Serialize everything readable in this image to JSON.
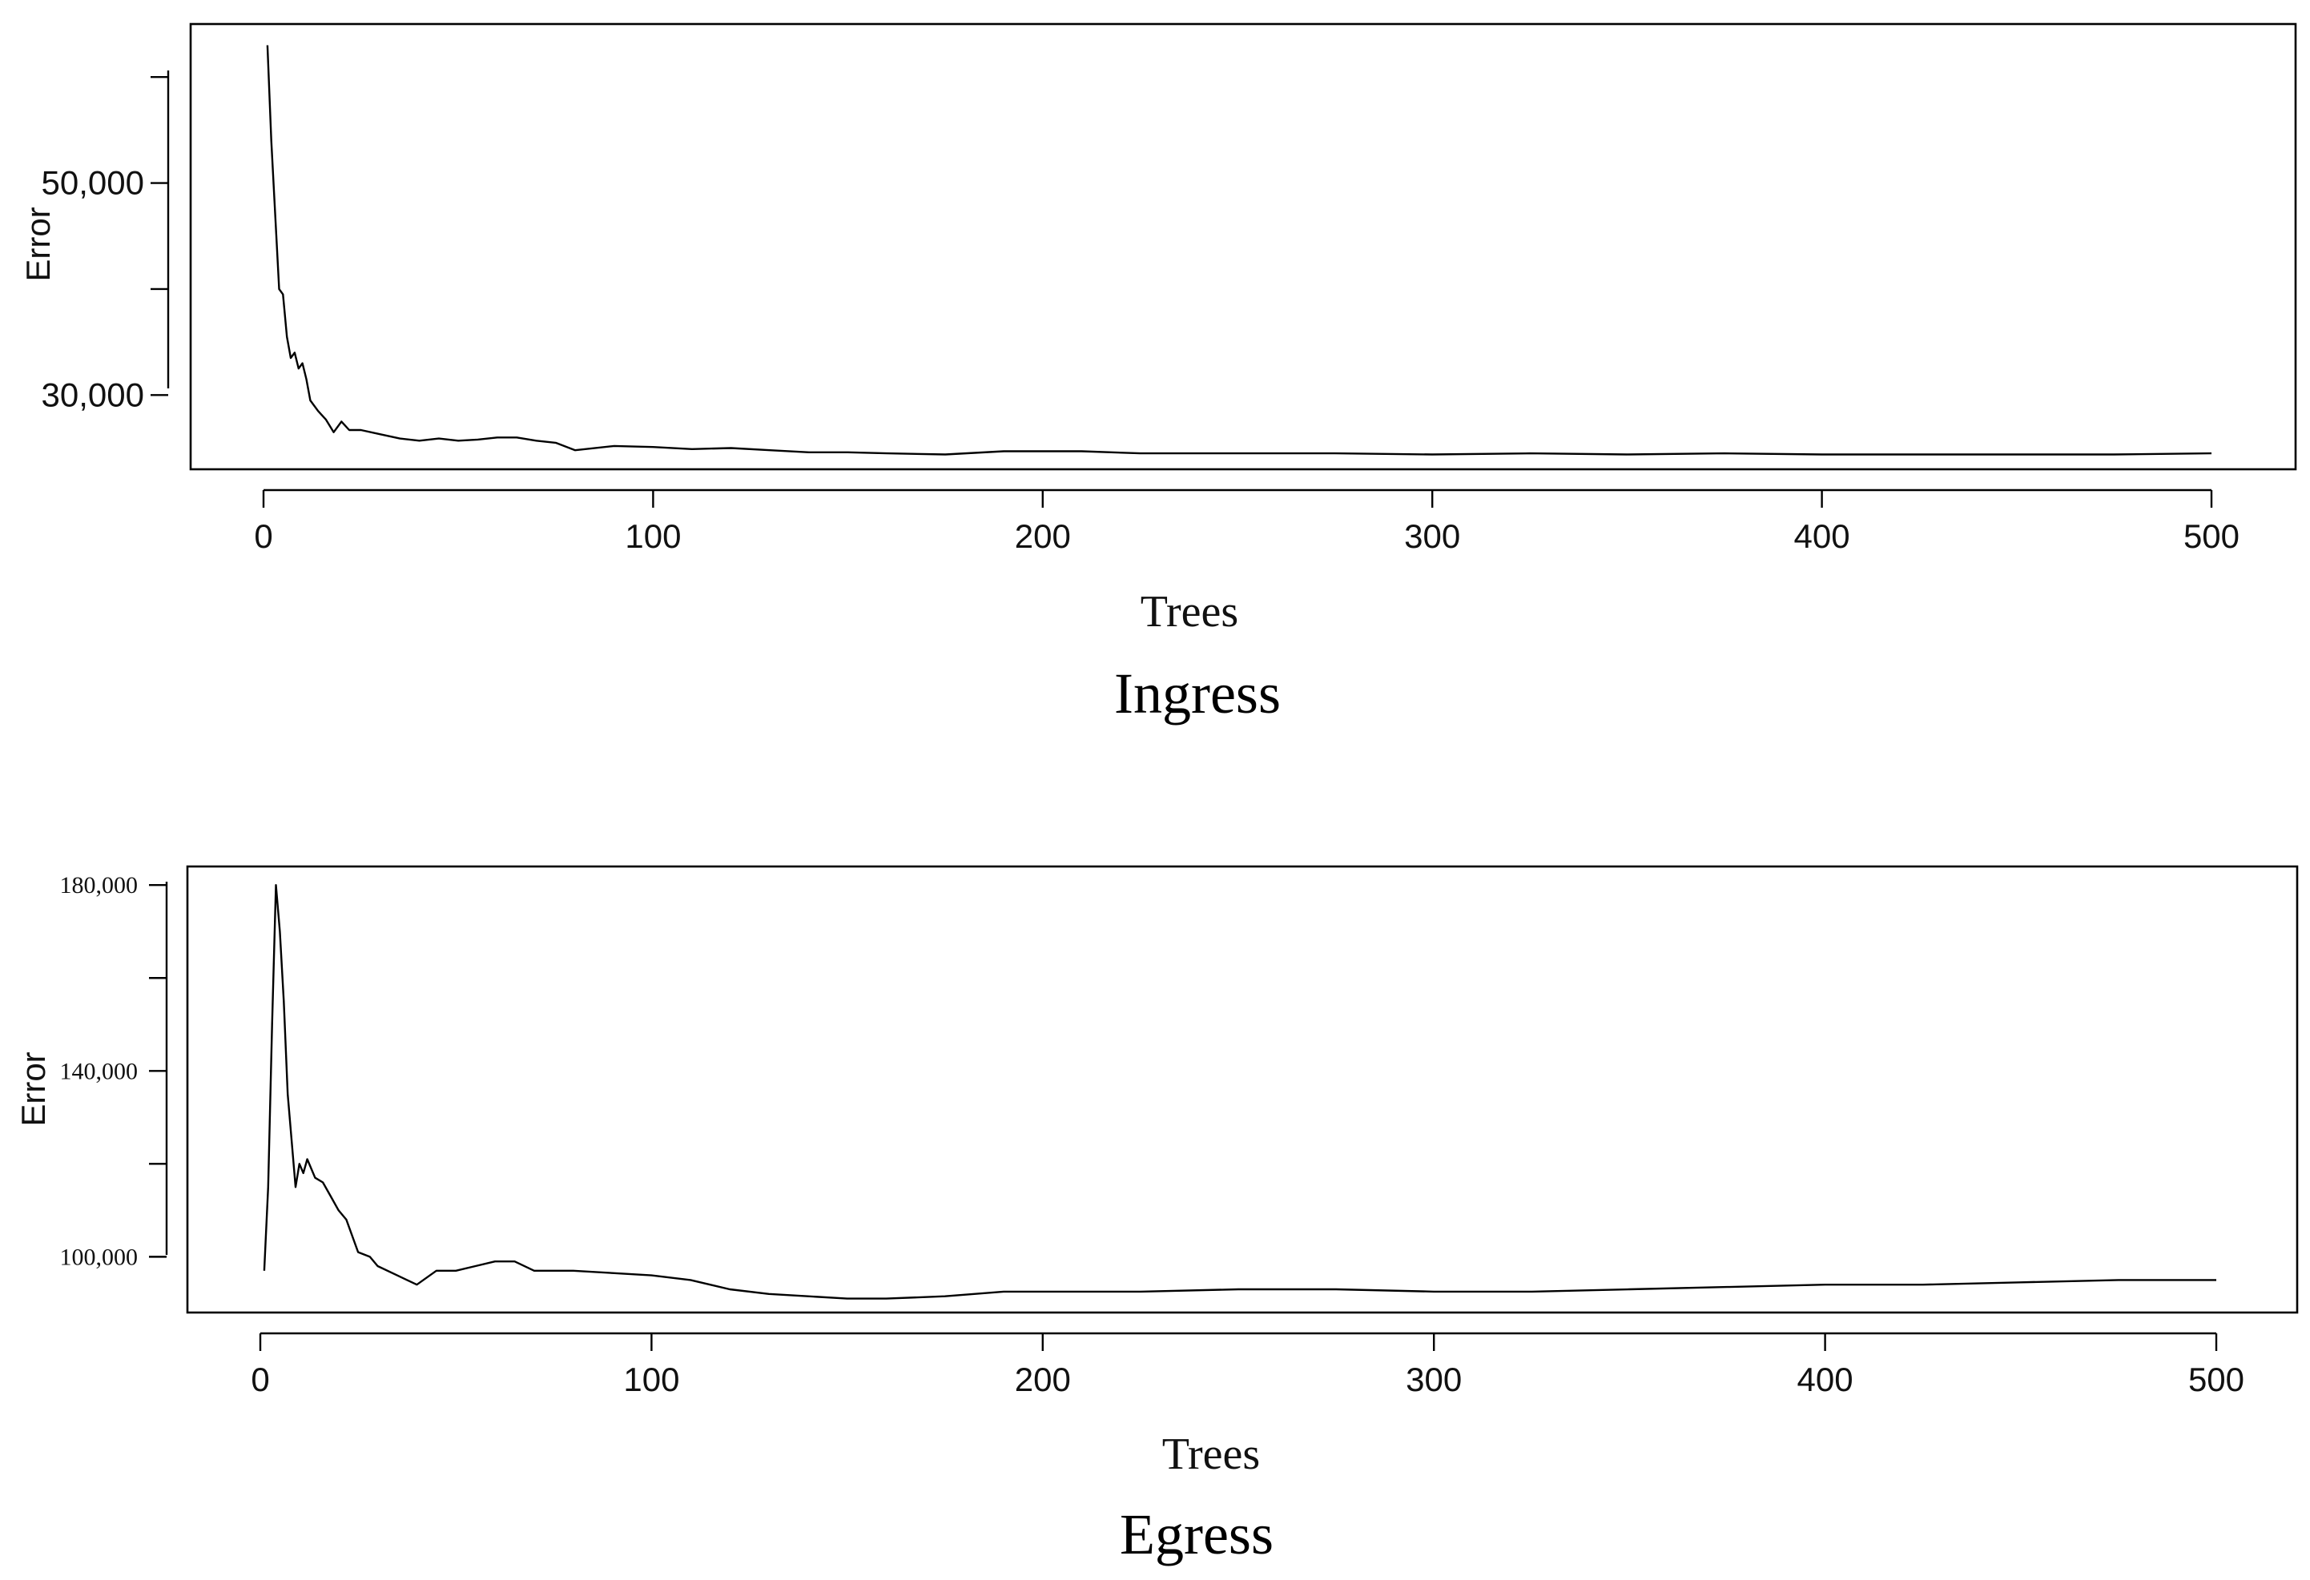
{
  "chart_data": [
    {
      "type": "line",
      "caption": "Ingress",
      "xlabel": "Trees",
      "ylabel": "Error",
      "xlim": [
        0,
        500
      ],
      "ylim": [
        23000,
        65000
      ],
      "x_ticks": [
        0,
        100,
        200,
        300,
        400,
        500
      ],
      "x_tick_labels": [
        "0",
        "100",
        "200",
        "300",
        "400",
        "500"
      ],
      "y_ticks": [
        30000,
        40000,
        50000,
        60000
      ],
      "y_tick_labels": [
        "30,000",
        "",
        "50,000",
        ""
      ],
      "grid": false,
      "series": [
        {
          "x": [
            1,
            2,
            3,
            4,
            5,
            6,
            7,
            8,
            9,
            10,
            11,
            12,
            14,
            16,
            18,
            20,
            22,
            25,
            30,
            35,
            40,
            45,
            50,
            55,
            60,
            65,
            70,
            75,
            80,
            90,
            100,
            110,
            120,
            130,
            140,
            150,
            160,
            175,
            190,
            200,
            210,
            225,
            250,
            275,
            300,
            325,
            350,
            375,
            400,
            425,
            450,
            475,
            500
          ],
          "y": [
            63000,
            54000,
            47000,
            40000,
            39500,
            35500,
            33500,
            34000,
            32500,
            33000,
            31500,
            29500,
            28500,
            27700,
            26500,
            27500,
            26700,
            26700,
            26300,
            25900,
            25700,
            25900,
            25700,
            25800,
            26000,
            26000,
            25700,
            25500,
            24800,
            25200,
            25100,
            24900,
            25000,
            24800,
            24600,
            24600,
            24500,
            24400,
            24700,
            24700,
            24700,
            24500,
            24500,
            24500,
            24400,
            24500,
            24400,
            24500,
            24400,
            24400,
            24400,
            24400,
            24500
          ]
        }
      ]
    },
    {
      "type": "line",
      "caption": "Egress",
      "xlabel": "Trees",
      "ylabel": "Error",
      "xlim": [
        0,
        500
      ],
      "ylim": [
        88000,
        184000
      ],
      "x_ticks": [
        0,
        100,
        200,
        300,
        400,
        500
      ],
      "x_tick_labels": [
        "0",
        "100",
        "200",
        "300",
        "400",
        "500"
      ],
      "y_ticks": [
        100000,
        120000,
        140000,
        160000,
        180000
      ],
      "y_tick_labels": [
        "100,000",
        "",
        "140,000",
        "",
        "180,000"
      ],
      "grid": false,
      "series": [
        {
          "x": [
            1,
            2,
            3,
            4,
            5,
            6,
            7,
            8,
            9,
            10,
            11,
            12,
            14,
            16,
            18,
            20,
            22,
            25,
            28,
            30,
            35,
            40,
            45,
            50,
            55,
            60,
            65,
            70,
            80,
            90,
            100,
            110,
            120,
            130,
            140,
            150,
            160,
            175,
            190,
            200,
            225,
            250,
            275,
            300,
            325,
            350,
            375,
            400,
            425,
            450,
            475,
            500
          ],
          "y": [
            97000,
            115000,
            150000,
            180000,
            170000,
            155000,
            135000,
            125000,
            115000,
            120000,
            118000,
            121000,
            117000,
            116000,
            113000,
            110000,
            108000,
            101000,
            100000,
            98000,
            96000,
            94000,
            97000,
            97000,
            98000,
            99000,
            99000,
            97000,
            97000,
            96500,
            96000,
            95000,
            93000,
            92000,
            91500,
            91000,
            91000,
            91500,
            92500,
            92500,
            92500,
            93000,
            93000,
            92500,
            92500,
            93000,
            93500,
            94000,
            94000,
            94500,
            95000,
            95000
          ]
        }
      ]
    }
  ]
}
